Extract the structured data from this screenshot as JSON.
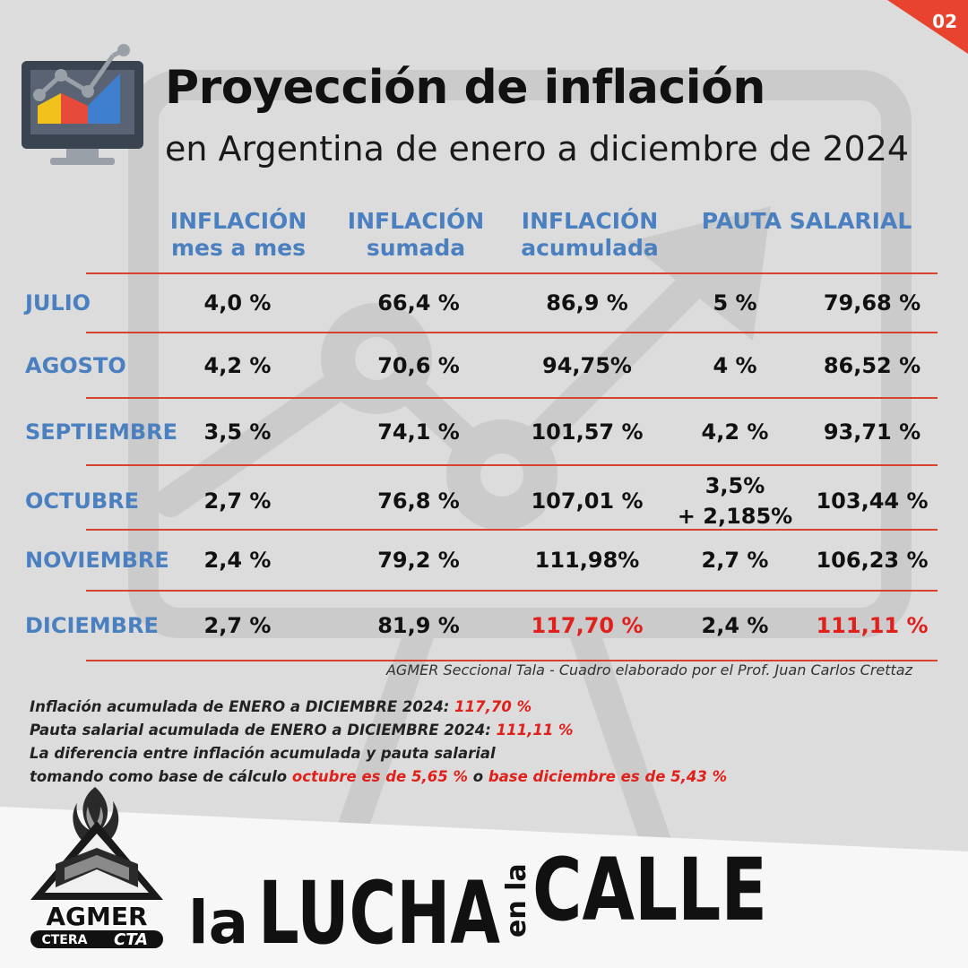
{
  "page_number": "02",
  "header": {
    "title": "Proyección de inflación",
    "subtitle": "en Argentina de enero a diciembre de 2024"
  },
  "table": {
    "columns": [
      "INFLACIÓN\nmes a mes",
      "INFLACIÓN\nsumada",
      "INFLACIÓN\nacumulada",
      "PAUTA SALARIAL"
    ],
    "rows": [
      {
        "month": "JULIO",
        "mes": "4,0 %",
        "sumada": "66,4 %",
        "acumulada": "86,9 %",
        "pauta": "5 %",
        "pauta_acum": "79,68 %"
      },
      {
        "month": "AGOSTO",
        "mes": "4,2 %",
        "sumada": "70,6 %",
        "acumulada": "94,75%",
        "pauta": "4 %",
        "pauta_acum": "86,52 %"
      },
      {
        "month": "SEPTIEMBRE",
        "mes": "3,5 %",
        "sumada": "74,1 %",
        "acumulada": "101,57 %",
        "pauta": "4,2 %",
        "pauta_acum": "93,71 %"
      },
      {
        "month": "OCTUBRE",
        "mes": "2,7 %",
        "sumada": "76,8 %",
        "acumulada": "107,01 %",
        "pauta": "3,5%\n+ 2,185%",
        "pauta_acum": "103,44 %"
      },
      {
        "month": "NOVIEMBRE",
        "mes": "2,4 %",
        "sumada": "79,2 %",
        "acumulada": "111,98%",
        "pauta": "2,7 %",
        "pauta_acum": "106,23 %"
      },
      {
        "month": "DICIEMBRE",
        "mes": "2,7 %",
        "sumada": "81,9 %",
        "acumulada": "117,70 %",
        "pauta": "2,4 %",
        "pauta_acum": "111,11 %",
        "highlight": true
      }
    ]
  },
  "credit": "AGMER Seccional Tala - Cuadro elaborado por el Prof. Juan Carlos Crettaz",
  "notes": {
    "line1_text": "Inflación acumulada de ENERO a DICIEMBRE 2024: ",
    "line1_value": "117,70 %",
    "line2_text": "Pauta salarial acumulada de ENERO a DICIEMBRE 2024: ",
    "line2_value": "111,11 %",
    "line3_text": "La diferencia entre inflación acumulada y pauta salarial",
    "line4_text": "tomando como base de cálculo ",
    "line4_value_a": "octubre es de 5,65 %",
    "line4_mid": " o ",
    "line4_value_b": "base diciembre es de 5,43 %"
  },
  "logo": {
    "name": "AGMER",
    "sub_left": "CTERA",
    "sub_right": "CTA"
  },
  "slogan": {
    "la1": "la",
    "lucha": "LUCHA",
    "en_la": "en la",
    "calle": "CALLE"
  },
  "colors": {
    "accent_blue": "#4a7fc0",
    "accent_red": "#e0201a",
    "rule_red": "#d8432f",
    "background": "#dcdcdc"
  },
  "icons": [
    "monitor-chart-icon",
    "agmer-torch-book-icon"
  ]
}
